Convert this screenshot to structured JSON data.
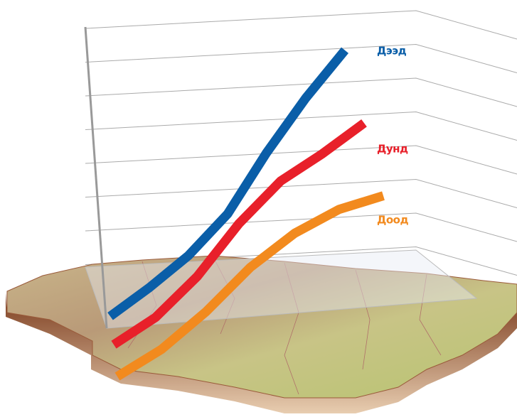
{
  "chart_data": {
    "type": "line",
    "categories": [
      null,
      null,
      null,
      null,
      null,
      null,
      null
    ],
    "series": [
      {
        "name": "Дээд",
        "color": "#0a5ea8",
        "values": [
          0.1,
          0.94,
          1.88,
          3.1,
          4.9,
          6.5,
          7.9
        ]
      },
      {
        "name": "Дунд",
        "color": "#e8202a",
        "values": [
          0.1,
          0.9,
          2.1,
          3.65,
          4.9,
          5.7,
          6.6
        ]
      },
      {
        "name": "Доод",
        "color": "#f28a1e",
        "values": [
          0,
          0.8,
          1.9,
          3.2,
          4.2,
          4.9,
          5.3
        ]
      }
    ],
    "ylim": [
      0,
      8
    ],
    "yticks": [
      0,
      1,
      2,
      3,
      4,
      5,
      6,
      7,
      8
    ],
    "grid": true
  }
}
